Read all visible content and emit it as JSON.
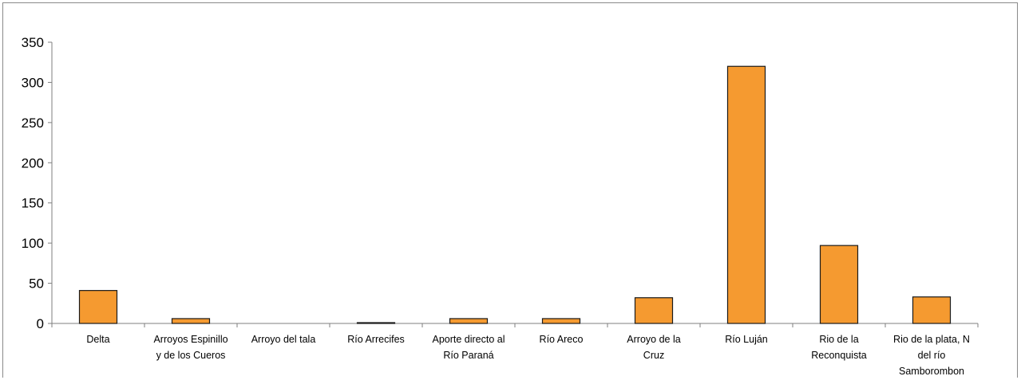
{
  "chart_data": {
    "type": "bar",
    "categories": [
      [
        "Delta"
      ],
      [
        "Arroyos Espinillo",
        "y de los Cueros"
      ],
      [
        "Arroyo del tala"
      ],
      [
        "Río Arrecifes"
      ],
      [
        "Aporte directo al",
        "Río Paraná"
      ],
      [
        "Río Areco"
      ],
      [
        "Arroyo de la",
        "Cruz"
      ],
      [
        "Río Luján"
      ],
      [
        "Rio de la",
        "Reconquista"
      ],
      [
        "Rio de la plata, N",
        "del río",
        "Samborombon"
      ]
    ],
    "values": [
      41,
      6,
      0,
      1,
      6,
      6,
      32,
      320,
      97,
      33
    ],
    "ylim": [
      0,
      350
    ],
    "yticks": [
      0,
      50,
      100,
      150,
      200,
      250,
      300,
      350
    ],
    "title": "",
    "xlabel": "",
    "ylabel": "",
    "grid": false,
    "bar_color": "#f59a30",
    "bar_edge_color": "#1a1a1a"
  }
}
